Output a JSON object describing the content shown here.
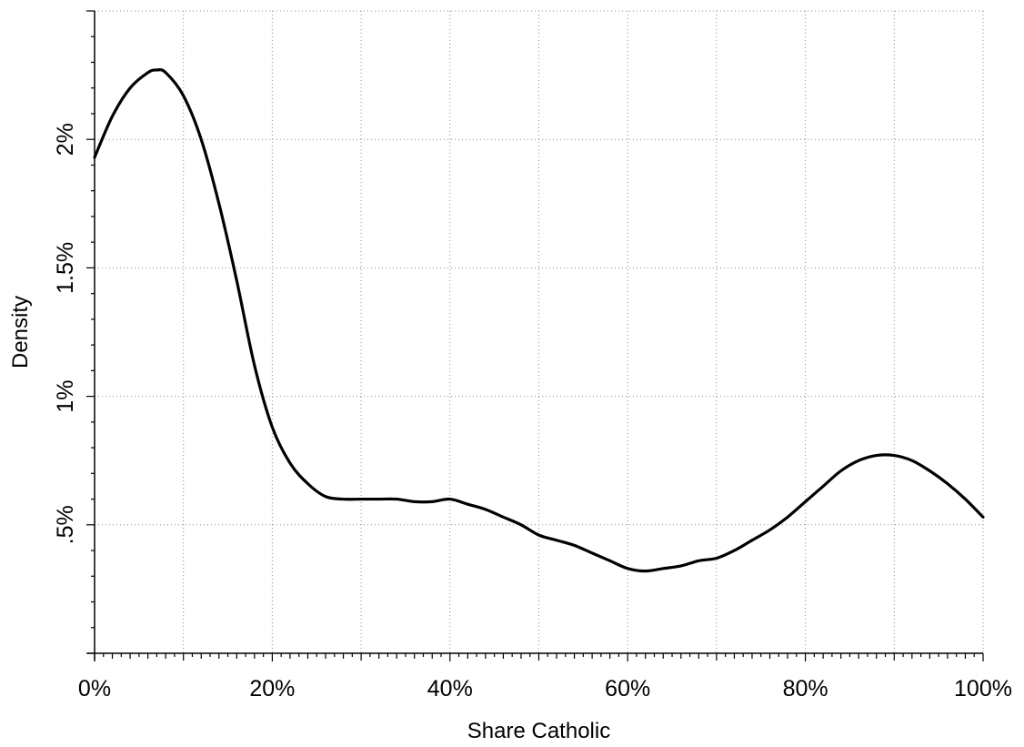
{
  "chart_data": {
    "type": "line",
    "title": "",
    "xlabel": "Share Catholic",
    "ylabel": "Density",
    "xlim": [
      0,
      1
    ],
    "ylim": [
      0,
      0.025
    ],
    "grid": true,
    "x_ticks": [
      {
        "value": 0.0,
        "label": "0%"
      },
      {
        "value": 0.2,
        "label": "20%"
      },
      {
        "value": 0.4,
        "label": "40%"
      },
      {
        "value": 0.6,
        "label": "60%"
      },
      {
        "value": 0.8,
        "label": "80%"
      },
      {
        "value": 1.0,
        "label": "100%"
      }
    ],
    "x_minor_ticks": [
      0.1,
      0.3,
      0.5,
      0.7,
      0.9
    ],
    "y_ticks": [
      {
        "value": 0.005,
        "label": ".5%"
      },
      {
        "value": 0.01,
        "label": "1%"
      },
      {
        "value": 0.015,
        "label": "1.5%"
      },
      {
        "value": 0.02,
        "label": "2%"
      }
    ],
    "series": [
      {
        "x": [
          0.0,
          0.02,
          0.04,
          0.06,
          0.07,
          0.08,
          0.1,
          0.12,
          0.14,
          0.16,
          0.18,
          0.2,
          0.22,
          0.24,
          0.26,
          0.28,
          0.3,
          0.32,
          0.34,
          0.36,
          0.38,
          0.4,
          0.42,
          0.44,
          0.46,
          0.48,
          0.5,
          0.52,
          0.54,
          0.56,
          0.58,
          0.6,
          0.62,
          0.64,
          0.66,
          0.68,
          0.7,
          0.72,
          0.74,
          0.76,
          0.78,
          0.8,
          0.82,
          0.84,
          0.86,
          0.88,
          0.9,
          0.92,
          0.94,
          0.96,
          0.98,
          1.0
        ],
        "y": [
          0.0193,
          0.0209,
          0.022,
          0.0226,
          0.0227,
          0.0226,
          0.0217,
          0.02,
          0.0175,
          0.0145,
          0.0112,
          0.0088,
          0.0074,
          0.0066,
          0.0061,
          0.006,
          0.006,
          0.006,
          0.006,
          0.0059,
          0.0059,
          0.006,
          0.0058,
          0.0056,
          0.0053,
          0.005,
          0.0046,
          0.0044,
          0.0042,
          0.0039,
          0.0036,
          0.0033,
          0.0032,
          0.0033,
          0.0034,
          0.0036,
          0.0037,
          0.004,
          0.0044,
          0.0048,
          0.0053,
          0.0059,
          0.0065,
          0.0071,
          0.0075,
          0.0077,
          0.0077,
          0.0075,
          0.0071,
          0.0066,
          0.006,
          0.0053
        ]
      }
    ]
  }
}
